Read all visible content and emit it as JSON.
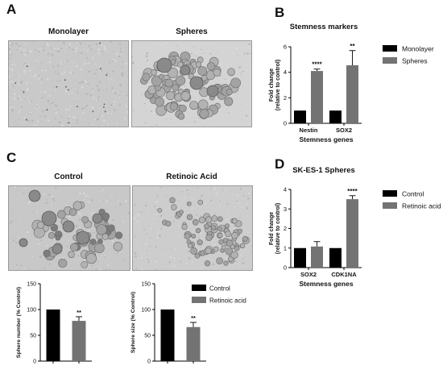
{
  "panels": {
    "a": {
      "letter": "A",
      "left_label": "Monolayer",
      "right_label": "Spheres"
    },
    "b": {
      "letter": "B"
    },
    "c": {
      "letter": "C",
      "left_label": "Control",
      "right_label": "Retinoic Acid"
    },
    "d": {
      "letter": "D"
    }
  },
  "colors": {
    "black_bar": "#000000",
    "gray_bar": "#737373",
    "photo_bg": "#c7c7c7"
  },
  "chart_data": [
    {
      "id": "B",
      "type": "bar",
      "title": "Stemness markers",
      "xlabel": "Stemness genes",
      "ylabel": "Fold change (relative to control)",
      "categories": [
        "Nestin",
        "SOX2"
      ],
      "ylim": [
        0,
        6
      ],
      "yticks": [
        0,
        2,
        4,
        6
      ],
      "legend_position": "right",
      "series": [
        {
          "name": "Monolayer",
          "color": "#000000",
          "values": [
            1.0,
            1.0
          ],
          "errors": [
            0,
            0
          ]
        },
        {
          "name": "Spheres",
          "color": "#737373",
          "values": [
            4.1,
            4.55
          ],
          "errors": [
            0.15,
            1.15
          ]
        }
      ],
      "annotations": [
        {
          "category": "Nestin",
          "series": "Spheres",
          "text": "****"
        },
        {
          "category": "SOX2",
          "series": "Spheres",
          "text": "**"
        }
      ]
    },
    {
      "id": "D",
      "type": "bar",
      "title": "SK-ES-1 Spheres",
      "xlabel": "Stemness genes",
      "ylabel": "Fold change (relative to control)",
      "categories": [
        "SOX2",
        "CDK1NA"
      ],
      "ylim": [
        0,
        4
      ],
      "yticks": [
        0,
        1,
        2,
        3,
        4
      ],
      "legend_position": "right",
      "series": [
        {
          "name": "Control",
          "color": "#000000",
          "values": [
            1.0,
            1.0
          ],
          "errors": [
            0,
            0
          ]
        },
        {
          "name": "Retinoic acid",
          "color": "#737373",
          "values": [
            1.08,
            3.5
          ],
          "errors": [
            0.25,
            0.18
          ]
        }
      ],
      "annotations": [
        {
          "category": "CDK1NA",
          "series": "Retinoic acid",
          "text": "****"
        }
      ]
    },
    {
      "id": "C-number",
      "type": "bar",
      "ylabel": "Sphere number (% Control)",
      "categories": [
        "Control",
        "Retinoic acid"
      ],
      "ylim": [
        0,
        150
      ],
      "yticks": [
        0,
        50,
        100,
        150
      ],
      "series": [
        {
          "name": "Sphere number",
          "values": [
            100,
            78
          ],
          "errors": [
            0,
            8
          ],
          "colors": [
            "#000000",
            "#737373"
          ]
        }
      ],
      "annotations": [
        {
          "category": "Retinoic acid",
          "text": "**"
        }
      ]
    },
    {
      "id": "C-size",
      "type": "bar",
      "ylabel": "Sphere size (% Control)",
      "categories": [
        "Control",
        "Retinoic acid"
      ],
      "ylim": [
        0,
        150
      ],
      "yticks": [
        0,
        50,
        100,
        150
      ],
      "legend_position": "right",
      "legend": [
        {
          "name": "Control",
          "color": "#000000"
        },
        {
          "name": "Retinoic acid",
          "color": "#737373"
        }
      ],
      "series": [
        {
          "name": "Sphere size",
          "values": [
            100,
            66
          ],
          "errors": [
            0,
            9
          ],
          "colors": [
            "#000000",
            "#737373"
          ]
        }
      ],
      "annotations": [
        {
          "category": "Retinoic acid",
          "text": "**"
        }
      ]
    }
  ]
}
